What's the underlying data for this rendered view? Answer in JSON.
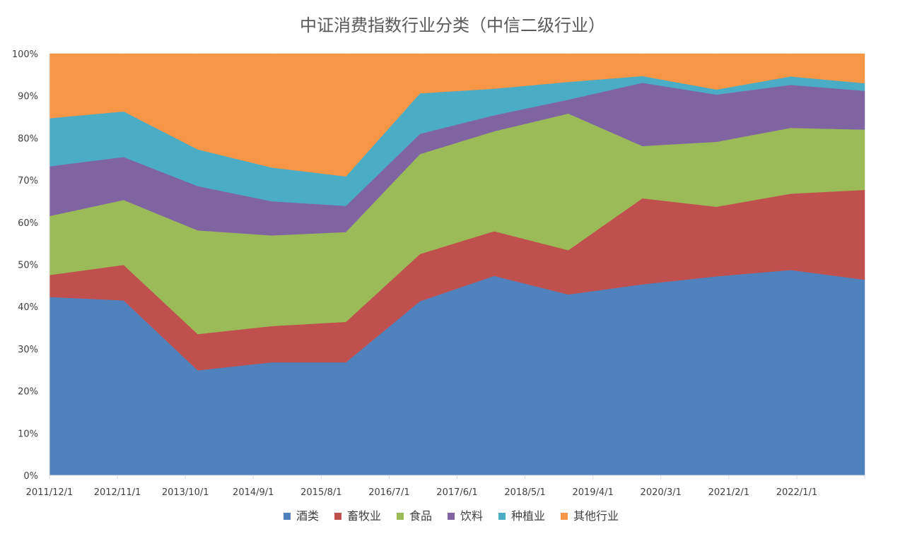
{
  "chart_data": {
    "type": "area",
    "stacked": true,
    "title": "中证消费指数行业分类（中信二级行业）",
    "y_ticks": [
      "0%",
      "10%",
      "20%",
      "30%",
      "40%",
      "50%",
      "60%",
      "70%",
      "80%",
      "90%",
      "100%"
    ],
    "ylim": [
      0,
      100
    ],
    "x_tick_labels": [
      "2011/12/1",
      "2012/11/1",
      "2013/10/1",
      "2014/9/1",
      "2015/8/1",
      "2016/7/1",
      "2017/6/1",
      "2018/5/1",
      "2019/4/1",
      "2020/3/1",
      "2021/2/1",
      "2022/1/1"
    ],
    "x": [
      "2011/12/1",
      "2012/12/1",
      "2013/12/1",
      "2014/12/1",
      "2015/12/1",
      "2016/12/1",
      "2017/12/1",
      "2018/12/1",
      "2019/12/1",
      "2020/12/1",
      "2021/12/1",
      "2022/12/1"
    ],
    "series": [
      {
        "name": "酒类",
        "color": "#4F81BD",
        "values": [
          42.3,
          41.5,
          24.9,
          26.8,
          26.8,
          41.3,
          47.3,
          42.9,
          45.3,
          47.2,
          48.7,
          46.4
        ]
      },
      {
        "name": "畜牧业",
        "color": "#C0504D",
        "values": [
          5.2,
          8.4,
          8.6,
          8.6,
          9.6,
          11.2,
          10.6,
          10.5,
          20.4,
          16.5,
          18.1,
          21.3
        ]
      },
      {
        "name": "食品",
        "color": "#9BBB59",
        "values": [
          14.0,
          15.4,
          24.6,
          21.5,
          21.3,
          23.7,
          23.7,
          32.4,
          12.4,
          15.4,
          15.6,
          14.3
        ]
      },
      {
        "name": "饮料",
        "color": "#8064A2",
        "values": [
          11.8,
          10.2,
          10.5,
          8.1,
          6.2,
          4.8,
          3.8,
          3.3,
          15.0,
          11.2,
          10.2,
          9.2
        ]
      },
      {
        "name": "种植业",
        "color": "#4BACC6",
        "values": [
          11.4,
          10.8,
          8.7,
          8.0,
          7.0,
          9.6,
          6.3,
          4.2,
          1.6,
          1.2,
          2.0,
          1.8
        ]
      },
      {
        "name": "其他行业",
        "color": "#F79646",
        "values": [
          15.3,
          13.7,
          22.7,
          27.0,
          29.1,
          9.4,
          8.3,
          6.7,
          5.3,
          8.5,
          5.4,
          7.0
        ]
      }
    ],
    "legend_position": "bottom",
    "grid": false
  }
}
